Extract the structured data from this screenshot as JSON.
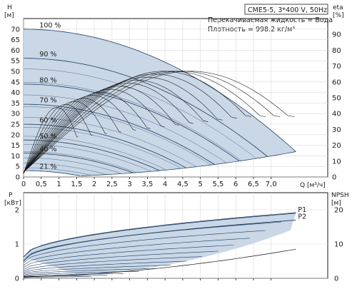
{
  "colors": {
    "envelope_fill": "#c9d7e6",
    "curve": "#1f3c63",
    "axis": "#1a1a1a",
    "grid": "#d9d9d9",
    "efficiency": "#111111"
  },
  "header": {
    "model": "CME5-5, 3*400 V, 50Hz",
    "liquid": "Перекачиваемая жидкость = Вода",
    "density": "Плотность = 998.2 кг/м³"
  },
  "chart_data": [
    {
      "type": "line",
      "panel": "head",
      "xlabel": "Q [м³/ч]",
      "ylabel": "H [м]",
      "y2label": "eta [%]",
      "xlim": [
        0,
        8.6
      ],
      "ylim": [
        0,
        75
      ],
      "y2lim": [
        0,
        100
      ],
      "x_ticks": [
        "0",
        "0,5",
        "1",
        "1,5",
        "2",
        "2,5",
        "3",
        "3,5",
        "4",
        "4,5",
        "5",
        "5,5",
        "6",
        "6,5",
        "7,0"
      ],
      "y_ticks": [
        0,
        5,
        10,
        15,
        20,
        25,
        30,
        35,
        40,
        45,
        50,
        55,
        60,
        65,
        70
      ],
      "y2_ticks": [
        0,
        10,
        20,
        30,
        40,
        50,
        60,
        70,
        80,
        90
      ],
      "grid": true,
      "speed_curves": [
        {
          "label": "100 %",
          "q_max": 7.7
        },
        {
          "label": "90 %",
          "q_max": 6.9
        },
        {
          "label": "80 %",
          "q_max": 6.1
        },
        {
          "label": "70 %",
          "q_max": 5.4
        },
        {
          "label": "60 %",
          "q_max": 4.6
        },
        {
          "label": "50 %",
          "q_max": 3.85
        },
        {
          "label": "40 %",
          "q_max": 3.1
        },
        {
          "label": "21 %",
          "q_max": 1.6
        }
      ],
      "shutoff_head": 70,
      "end_head_at_full_speed": 12,
      "efficiency_peak_percent": 71
    },
    {
      "type": "area",
      "panel": "power",
      "xlim": [
        0,
        8.6
      ],
      "ylabel": "P [кВт]",
      "y2label": "NPSH [м]",
      "ylim": [
        0,
        2.5
      ],
      "y2lim": [
        0,
        25
      ],
      "y_ticks": [
        0,
        1,
        2
      ],
      "y2_ticks": [
        0,
        10,
        20
      ],
      "grid": true,
      "series": [
        {
          "name": "P1",
          "start": 0.62,
          "end": 1.9
        },
        {
          "name": "P2",
          "start": 0.5,
          "end": 1.7
        }
      ]
    }
  ]
}
